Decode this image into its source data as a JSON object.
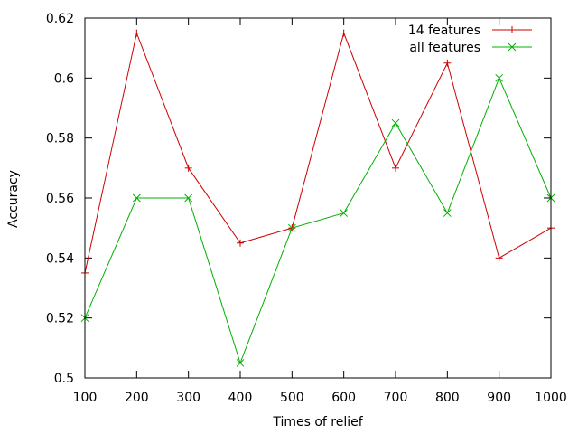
{
  "chart_data": {
    "type": "line",
    "title": "",
    "xlabel": "Times of relief",
    "ylabel": "Accuracy",
    "x": [
      100,
      200,
      300,
      400,
      500,
      600,
      700,
      800,
      900,
      1000
    ],
    "xlim": [
      100,
      1000
    ],
    "ylim": [
      0.5,
      0.62
    ],
    "xticks": [
      "100",
      "200",
      "300",
      "400",
      "500",
      "600",
      "700",
      "800",
      "900",
      "1000"
    ],
    "yticks": [
      "0.5",
      "0.52",
      "0.54",
      "0.56",
      "0.58",
      "0.6",
      "0.62"
    ],
    "grid": false,
    "legend_position": "top-right",
    "series": [
      {
        "name": "14 features",
        "color": "#cc0000",
        "marker": "plus",
        "values": [
          0.535,
          0.615,
          0.57,
          0.545,
          0.55,
          0.615,
          0.57,
          0.605,
          0.54,
          0.55
        ]
      },
      {
        "name": "all features",
        "color": "#00b000",
        "marker": "cross",
        "values": [
          0.52,
          0.56,
          0.56,
          0.505,
          0.55,
          0.555,
          0.585,
          0.555,
          0.6,
          0.56
        ]
      }
    ]
  }
}
